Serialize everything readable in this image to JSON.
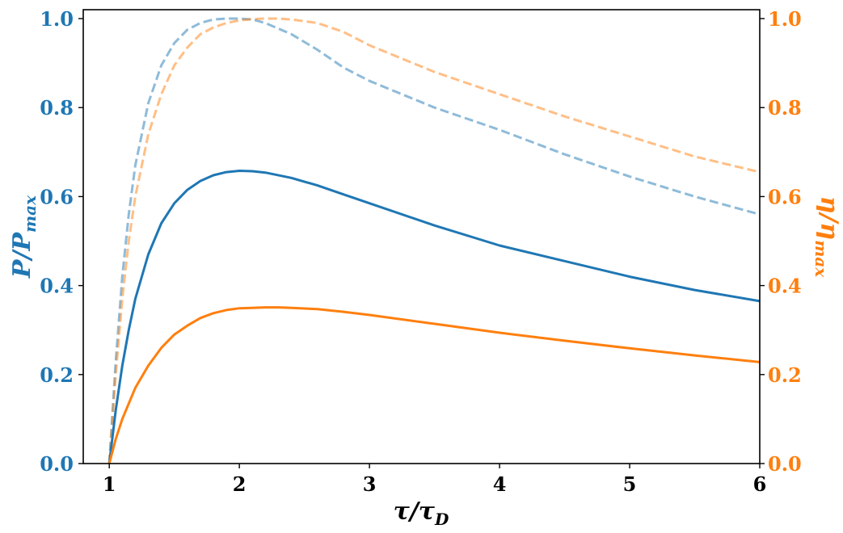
{
  "chart_data": {
    "type": "line",
    "xlabel": {
      "main": "τ/τ",
      "sub": "D"
    },
    "ylabel_left": {
      "main": "P/P",
      "sub": "max"
    },
    "ylabel_right": {
      "main": "η/η",
      "sub": "max"
    },
    "xlim": [
      0.8,
      6.0
    ],
    "ylim_left": [
      0.0,
      1.02
    ],
    "ylim_right": [
      0.0,
      1.02
    ],
    "x_ticks": [
      1,
      2,
      3,
      4,
      5,
      6
    ],
    "x_tick_labels": [
      "1",
      "2",
      "3",
      "4",
      "5",
      "6"
    ],
    "y_ticks_left": [
      0.0,
      0.2,
      0.4,
      0.6,
      0.8,
      1.0
    ],
    "y_tick_labels_left": [
      "0.0",
      "0.2",
      "0.4",
      "0.6",
      "0.8",
      "1.0"
    ],
    "y_ticks_right": [
      0.0,
      0.2,
      0.4,
      0.6,
      0.8,
      1.0
    ],
    "y_tick_labels_right": [
      "0.0",
      "0.2",
      "0.4",
      "0.6",
      "0.8",
      "1.0"
    ],
    "colors": {
      "left_axis": "#1f77b4",
      "right_axis": "#ff7f0e"
    },
    "series": [
      {
        "axis": "left",
        "color": "#1f77b4",
        "style": "dashed",
        "alpha": 0.5,
        "x": [
          1.0,
          1.05,
          1.1,
          1.15,
          1.2,
          1.3,
          1.4,
          1.5,
          1.6,
          1.7,
          1.8,
          1.9,
          2.0,
          2.1,
          2.2,
          2.4,
          2.6,
          2.8,
          3.0,
          3.5,
          4.0,
          4.5,
          5.0,
          5.5,
          6.0
        ],
        "y": [
          0.0,
          0.23,
          0.42,
          0.56,
          0.67,
          0.81,
          0.895,
          0.945,
          0.975,
          0.99,
          0.998,
          1.0,
          1.0,
          0.998,
          0.99,
          0.965,
          0.93,
          0.89,
          0.86,
          0.8,
          0.75,
          0.695,
          0.645,
          0.6,
          0.56
        ]
      },
      {
        "axis": "right",
        "color": "#ff7f0e",
        "style": "dashed",
        "alpha": 0.5,
        "x": [
          1.0,
          1.05,
          1.1,
          1.15,
          1.2,
          1.3,
          1.4,
          1.5,
          1.6,
          1.7,
          1.8,
          1.9,
          2.0,
          2.1,
          2.2,
          2.3,
          2.4,
          2.6,
          2.8,
          3.0,
          3.5,
          4.0,
          4.5,
          5.0,
          5.5,
          6.0
        ],
        "y": [
          0.0,
          0.2,
          0.37,
          0.5,
          0.6,
          0.74,
          0.83,
          0.895,
          0.935,
          0.965,
          0.98,
          0.99,
          0.996,
          0.999,
          1.0,
          1.0,
          0.998,
          0.99,
          0.97,
          0.94,
          0.88,
          0.83,
          0.78,
          0.735,
          0.69,
          0.655
        ]
      },
      {
        "axis": "left",
        "color": "#1f77b4",
        "style": "solid",
        "alpha": 1.0,
        "x": [
          1.0,
          1.05,
          1.1,
          1.15,
          1.2,
          1.3,
          1.4,
          1.5,
          1.6,
          1.7,
          1.8,
          1.9,
          2.0,
          2.1,
          2.2,
          2.4,
          2.6,
          2.8,
          3.0,
          3.5,
          4.0,
          4.5,
          5.0,
          5.5,
          6.0
        ],
        "y": [
          0.0,
          0.12,
          0.22,
          0.3,
          0.37,
          0.47,
          0.54,
          0.585,
          0.615,
          0.635,
          0.648,
          0.655,
          0.658,
          0.657,
          0.654,
          0.642,
          0.625,
          0.605,
          0.585,
          0.535,
          0.49,
          0.455,
          0.42,
          0.39,
          0.365
        ]
      },
      {
        "axis": "left",
        "color": "#ff7f0e",
        "style": "solid",
        "alpha": 1.0,
        "x": [
          1.0,
          1.05,
          1.1,
          1.2,
          1.3,
          1.4,
          1.5,
          1.6,
          1.7,
          1.8,
          1.9,
          2.0,
          2.1,
          2.2,
          2.3,
          2.4,
          2.6,
          2.8,
          3.0,
          3.5,
          4.0,
          4.5,
          5.0,
          5.5,
          6.0
        ],
        "y": [
          0.0,
          0.055,
          0.1,
          0.17,
          0.22,
          0.26,
          0.29,
          0.31,
          0.327,
          0.338,
          0.345,
          0.349,
          0.35,
          0.351,
          0.351,
          0.35,
          0.347,
          0.341,
          0.334,
          0.314,
          0.294,
          0.276,
          0.259,
          0.243,
          0.228
        ]
      }
    ]
  }
}
